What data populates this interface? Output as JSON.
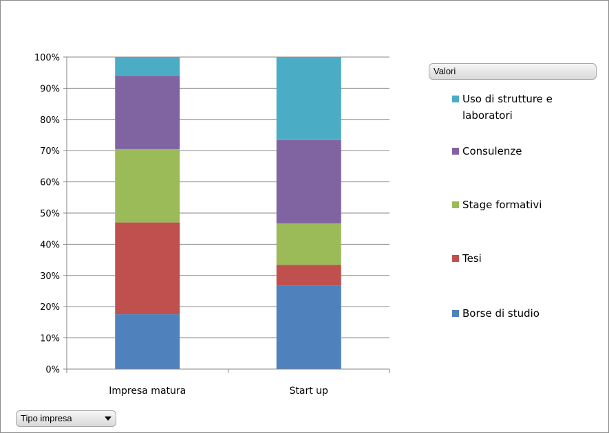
{
  "chart_data": {
    "type": "bar",
    "stacked": true,
    "normalized": true,
    "categories": [
      "Impresa matura",
      "Start up"
    ],
    "series": [
      {
        "name": "Borse di studio",
        "values": [
          17.6,
          26.7
        ],
        "color": "#4f81bd"
      },
      {
        "name": "Tesi",
        "values": [
          29.4,
          6.7
        ],
        "color": "#c0504d"
      },
      {
        "name": "Stage formativi",
        "values": [
          23.5,
          13.3
        ],
        "color": "#9bbb59"
      },
      {
        "name": "Consulenze",
        "values": [
          23.5,
          26.7
        ],
        "color": "#8064a2"
      },
      {
        "name": "Uso di strutture e laboratori",
        "values": [
          6.0,
          26.6
        ],
        "color": "#4bacc6"
      }
    ],
    "y_ticks": [
      "0%",
      "10%",
      "20%",
      "30%",
      "40%",
      "50%",
      "60%",
      "70%",
      "80%",
      "90%",
      "100%"
    ],
    "ylim": [
      0,
      100
    ],
    "grid": true,
    "legend_position": "right",
    "legend_title": "Valori",
    "axis_field_label": "Tipo impresa"
  }
}
